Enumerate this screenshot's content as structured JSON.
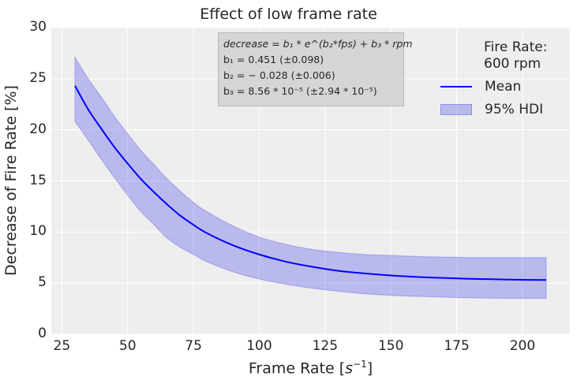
{
  "chart_data": {
    "type": "line",
    "title": "Effect of low frame rate",
    "xlabel": "Frame Rate [s⁻¹]",
    "xlabel_base": "Frame Rate [",
    "xlabel_sup": "−1",
    "xlabel_var": "s",
    "xlabel_end": "]",
    "ylabel": "Decrease of Fire Rate [%]",
    "xlim": [
      21,
      218
    ],
    "ylim": [
      0,
      30
    ],
    "grid": true,
    "xticks": [
      25,
      50,
      75,
      100,
      125,
      150,
      175,
      200
    ],
    "xtick_labels": [
      "25",
      "50",
      "75",
      "100",
      "125",
      "150",
      "175",
      "200"
    ],
    "yticks": [
      0,
      5,
      10,
      15,
      20,
      25,
      30
    ],
    "ytick_labels": [
      "0",
      "5",
      "10",
      "15",
      "20",
      "25",
      "30"
    ],
    "x": [
      30,
      35,
      40,
      45,
      50,
      55,
      60,
      65,
      70,
      75,
      80,
      90,
      100,
      110,
      120,
      130,
      140,
      150,
      160,
      170,
      180,
      190,
      200,
      209
    ],
    "series": [
      {
        "name": "Mean",
        "color": "#0000ff",
        "values": [
          24.3,
          22.0,
          20.1,
          18.3,
          16.7,
          15.2,
          13.9,
          12.7,
          11.6,
          10.7,
          9.9,
          8.7,
          7.8,
          7.1,
          6.6,
          6.2,
          5.95,
          5.75,
          5.6,
          5.5,
          5.42,
          5.37,
          5.32,
          5.3
        ]
      },
      {
        "name": "95% HDI upper",
        "values": [
          27.1,
          25.0,
          23.2,
          21.3,
          19.6,
          18.0,
          16.6,
          15.2,
          14.0,
          12.9,
          12.0,
          10.6,
          9.5,
          8.8,
          8.3,
          8.0,
          7.8,
          7.7,
          7.6,
          7.55,
          7.5,
          7.5,
          7.5,
          7.5
        ]
      },
      {
        "name": "95% HDI lower",
        "values": [
          20.8,
          19.0,
          17.1,
          15.3,
          13.6,
          12.0,
          10.7,
          9.4,
          8.5,
          7.8,
          7.1,
          6.1,
          5.4,
          4.9,
          4.5,
          4.2,
          3.95,
          3.8,
          3.7,
          3.62,
          3.56,
          3.52,
          3.5,
          3.5
        ]
      }
    ],
    "legend": {
      "position": "top-right",
      "title_line1": "Fire Rate:",
      "title_line2": "600 rpm",
      "entries": [
        "Mean",
        "95% HDI"
      ]
    },
    "hdi_color": "#6464eb",
    "annotation": {
      "line1": "decrease = b₁ * e^(b₂*fps) + b₃ * rpm",
      "line2": "b₁ = 0.451 (±0.098)",
      "line3": "b₂ = − 0.028 (±0.006)",
      "line4": "b₃ = 8.56 * 10⁻⁵ (±2.94 * 10⁻⁵)"
    }
  }
}
